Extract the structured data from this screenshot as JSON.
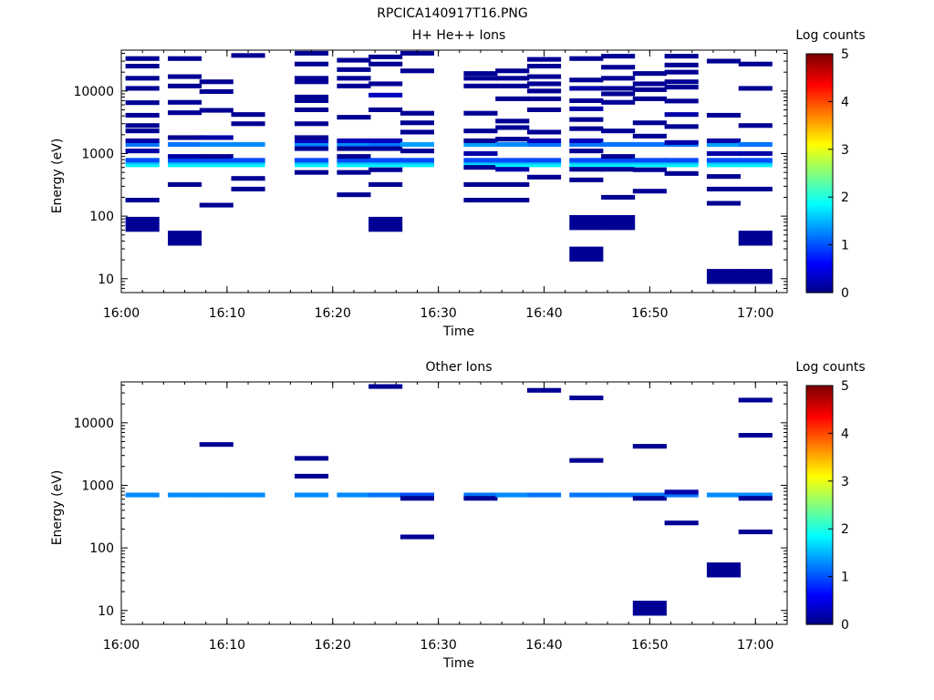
{
  "figure_title": "RPCICA140917T16.PNG",
  "chart_data": [
    {
      "type": "heatmap",
      "title": "H+ He++ Ions",
      "xlabel": "Time",
      "ylabel": "Energy (eV)",
      "x_ticks": [
        "16:00",
        "16:10",
        "16:20",
        "16:30",
        "16:40",
        "16:50",
        "17:00"
      ],
      "x_range": [
        "16:00",
        "17:03"
      ],
      "y_scale": "log",
      "y_ticks": [
        "10",
        "100",
        "1000",
        "10000"
      ],
      "y_range": [
        6,
        45000
      ],
      "colorbar": {
        "label": "Log counts",
        "range": [
          0,
          5
        ],
        "ticks": [
          "0",
          "1",
          "2",
          "3",
          "4",
          "5"
        ]
      },
      "time_columns": [
        "16:02",
        "16:06",
        "16:09",
        "16:12",
        "16:18",
        "16:22",
        "16:25",
        "16:28",
        "16:34",
        "16:37",
        "16:40",
        "16:44",
        "16:47",
        "16:50",
        "16:53",
        "16:57",
        "17:00"
      ],
      "cells": [
        [
          0,
          660,
          1.8
        ],
        [
          0,
          730,
          1.6
        ],
        [
          0,
          1400,
          1.2
        ],
        [
          0,
          780,
          1.0
        ],
        [
          0,
          75,
          0.1
        ],
        [
          0,
          180,
          0.1
        ],
        [
          0,
          1100,
          0.2
        ],
        [
          0,
          1600,
          0.2
        ],
        [
          0,
          2300,
          0.1
        ],
        [
          0,
          2800,
          0.1
        ],
        [
          0,
          4100,
          0.1
        ],
        [
          0,
          6500,
          0.1
        ],
        [
          0,
          11000,
          0.1
        ],
        [
          0,
          16000,
          0.1
        ],
        [
          0,
          25000,
          0.1
        ],
        [
          0,
          33000,
          0.1
        ],
        [
          1,
          660,
          1.8
        ],
        [
          1,
          730,
          1.6
        ],
        [
          1,
          1400,
          1.2
        ],
        [
          1,
          780,
          1.0
        ],
        [
          1,
          45,
          0.1
        ],
        [
          1,
          320,
          0.1
        ],
        [
          1,
          900,
          0.2
        ],
        [
          1,
          1800,
          0.1
        ],
        [
          1,
          4500,
          0.1
        ],
        [
          1,
          6600,
          0.1
        ],
        [
          1,
          12000,
          0.1
        ],
        [
          1,
          17000,
          0.1
        ],
        [
          1,
          33000,
          0.1
        ],
        [
          2,
          660,
          1.8
        ],
        [
          2,
          730,
          1.6
        ],
        [
          2,
          1400,
          1.3
        ],
        [
          2,
          780,
          1.0
        ],
        [
          2,
          150,
          0.1
        ],
        [
          2,
          900,
          0.1
        ],
        [
          2,
          1800,
          0.2
        ],
        [
          2,
          4900,
          0.1
        ],
        [
          2,
          9800,
          0.1
        ],
        [
          2,
          14000,
          0.1
        ],
        [
          3,
          660,
          1.8
        ],
        [
          3,
          730,
          1.6
        ],
        [
          3,
          1400,
          1.3
        ],
        [
          3,
          780,
          1.0
        ],
        [
          3,
          270,
          0.1
        ],
        [
          3,
          400,
          0.1
        ],
        [
          3,
          3000,
          0.1
        ],
        [
          3,
          4200,
          0.1
        ],
        [
          3,
          37000,
          0.1
        ],
        [
          4,
          660,
          1.8
        ],
        [
          4,
          730,
          1.6
        ],
        [
          4,
          1400,
          1.3
        ],
        [
          4,
          780,
          1.0
        ],
        [
          4,
          1600,
          0.3
        ],
        [
          4,
          500,
          0.1
        ],
        [
          4,
          1200,
          0.1
        ],
        [
          4,
          1800,
          0.1
        ],
        [
          4,
          3000,
          0.1
        ],
        [
          4,
          5000,
          0.1
        ],
        [
          4,
          7000,
          0.1
        ],
        [
          4,
          8000,
          0.1
        ],
        [
          4,
          14000,
          0.1
        ],
        [
          4,
          16000,
          0.1
        ],
        [
          4,
          27000,
          0.1
        ],
        [
          4,
          40000,
          0.1
        ],
        [
          5,
          660,
          1.8
        ],
        [
          5,
          730,
          1.6
        ],
        [
          5,
          1400,
          1.3
        ],
        [
          5,
          780,
          1.0
        ],
        [
          5,
          1600,
          0.3
        ],
        [
          5,
          220,
          0.1
        ],
        [
          5,
          500,
          0.1
        ],
        [
          5,
          900,
          0.1
        ],
        [
          5,
          1200,
          0.1
        ],
        [
          5,
          3800,
          0.1
        ],
        [
          5,
          12000,
          0.1
        ],
        [
          5,
          16000,
          0.1
        ],
        [
          5,
          22000,
          0.1
        ],
        [
          5,
          31000,
          0.1
        ],
        [
          6,
          660,
          1.8
        ],
        [
          6,
          730,
          1.6
        ],
        [
          6,
          1400,
          1.2
        ],
        [
          6,
          780,
          1.0
        ],
        [
          6,
          1600,
          0.3
        ],
        [
          6,
          75,
          0.1
        ],
        [
          6,
          320,
          0.1
        ],
        [
          6,
          550,
          0.1
        ],
        [
          6,
          1200,
          0.1
        ],
        [
          6,
          5000,
          0.1
        ],
        [
          6,
          8600,
          0.3
        ],
        [
          6,
          13000,
          0.1
        ],
        [
          6,
          27000,
          0.1
        ],
        [
          6,
          35000,
          0.1
        ],
        [
          7,
          660,
          1.8
        ],
        [
          7,
          730,
          1.6
        ],
        [
          7,
          1400,
          1.4
        ],
        [
          7,
          780,
          1.0
        ],
        [
          7,
          1100,
          0.1
        ],
        [
          7,
          2200,
          0.1
        ],
        [
          7,
          3100,
          0.1
        ],
        [
          7,
          4400,
          0.1
        ],
        [
          7,
          21000,
          0.1
        ],
        [
          7,
          40000,
          0.1
        ],
        [
          8,
          660,
          1.8
        ],
        [
          8,
          730,
          1.6
        ],
        [
          8,
          1400,
          1.4
        ],
        [
          8,
          780,
          1.0
        ],
        [
          8,
          180,
          0.1
        ],
        [
          8,
          320,
          0.1
        ],
        [
          8,
          600,
          0.1
        ],
        [
          8,
          1000,
          0.2
        ],
        [
          8,
          1600,
          0.1
        ],
        [
          8,
          2300,
          0.1
        ],
        [
          8,
          4400,
          0.1
        ],
        [
          8,
          12000,
          0.1
        ],
        [
          8,
          16000,
          0.1
        ],
        [
          8,
          19000,
          0.1
        ],
        [
          9,
          660,
          1.8
        ],
        [
          9,
          730,
          1.6
        ],
        [
          9,
          1400,
          1.3
        ],
        [
          9,
          780,
          1.0
        ],
        [
          9,
          180,
          0.1
        ],
        [
          9,
          320,
          0.1
        ],
        [
          9,
          560,
          0.2
        ],
        [
          9,
          1700,
          0.1
        ],
        [
          9,
          2600,
          0.1
        ],
        [
          9,
          3300,
          0.1
        ],
        [
          9,
          7500,
          0.1
        ],
        [
          9,
          12000,
          0.1
        ],
        [
          9,
          16000,
          0.1
        ],
        [
          9,
          21000,
          0.1
        ],
        [
          10,
          660,
          1.8
        ],
        [
          10,
          730,
          1.6
        ],
        [
          10,
          1400,
          1.2
        ],
        [
          10,
          780,
          1.0
        ],
        [
          10,
          1600,
          0.3
        ],
        [
          10,
          420,
          0.1
        ],
        [
          10,
          2200,
          0.1
        ],
        [
          10,
          5000,
          0.1
        ],
        [
          10,
          7500,
          0.1
        ],
        [
          10,
          10000,
          0.1
        ],
        [
          10,
          13000,
          0.1
        ],
        [
          10,
          17000,
          0.1
        ],
        [
          10,
          25000,
          0.1
        ],
        [
          10,
          32000,
          0.1
        ],
        [
          11,
          660,
          1.8
        ],
        [
          11,
          730,
          1.6
        ],
        [
          11,
          1400,
          1.2
        ],
        [
          11,
          780,
          1.0
        ],
        [
          11,
          80,
          0.1
        ],
        [
          11,
          25,
          0.1
        ],
        [
          11,
          380,
          0.1
        ],
        [
          11,
          560,
          0.1
        ],
        [
          11,
          1100,
          0.1
        ],
        [
          11,
          1600,
          0.3
        ],
        [
          11,
          2500,
          0.1
        ],
        [
          11,
          3500,
          0.1
        ],
        [
          11,
          5200,
          0.2
        ],
        [
          11,
          7000,
          0.1
        ],
        [
          11,
          11000,
          0.2
        ],
        [
          11,
          15000,
          0.1
        ],
        [
          11,
          33000,
          0.1
        ],
        [
          12,
          660,
          1.8
        ],
        [
          12,
          730,
          1.6
        ],
        [
          12,
          1400,
          1.2
        ],
        [
          12,
          780,
          1.0
        ],
        [
          12,
          80,
          0.1
        ],
        [
          12,
          200,
          0.1
        ],
        [
          12,
          560,
          0.1
        ],
        [
          12,
          900,
          0.1
        ],
        [
          12,
          2300,
          0.1
        ],
        [
          12,
          6600,
          0.1
        ],
        [
          12,
          9000,
          0.1
        ],
        [
          12,
          11000,
          0.1
        ],
        [
          12,
          16000,
          0.1
        ],
        [
          12,
          24000,
          0.1
        ],
        [
          12,
          36000,
          0.1
        ],
        [
          13,
          660,
          1.8
        ],
        [
          13,
          730,
          1.6
        ],
        [
          13,
          1400,
          1.2
        ],
        [
          13,
          780,
          1.0
        ],
        [
          13,
          250,
          0.1
        ],
        [
          13,
          550,
          0.1
        ],
        [
          13,
          1900,
          0.1
        ],
        [
          13,
          3100,
          0.1
        ],
        [
          13,
          7500,
          0.1
        ],
        [
          13,
          10500,
          0.1
        ],
        [
          13,
          13000,
          0.1
        ],
        [
          13,
          19000,
          0.1
        ],
        [
          14,
          660,
          1.8
        ],
        [
          14,
          730,
          1.6
        ],
        [
          14,
          1400,
          1.2
        ],
        [
          14,
          780,
          1.0
        ],
        [
          14,
          480,
          0.1
        ],
        [
          14,
          1500,
          0.2
        ],
        [
          14,
          2700,
          0.1
        ],
        [
          14,
          4200,
          0.2
        ],
        [
          14,
          6900,
          0.1
        ],
        [
          14,
          11500,
          0.1
        ],
        [
          14,
          14000,
          0.1
        ],
        [
          14,
          20000,
          0.1
        ],
        [
          14,
          26000,
          0.1
        ],
        [
          14,
          36000,
          0.1
        ],
        [
          15,
          660,
          1.8
        ],
        [
          15,
          730,
          1.6
        ],
        [
          15,
          1400,
          1.4
        ],
        [
          15,
          780,
          1.0
        ],
        [
          15,
          11,
          0.1
        ],
        [
          15,
          160,
          0.1
        ],
        [
          15,
          270,
          0.1
        ],
        [
          15,
          430,
          0.1
        ],
        [
          15,
          1000,
          0.2
        ],
        [
          15,
          1600,
          0.2
        ],
        [
          15,
          4100,
          0.1
        ],
        [
          15,
          30000,
          0.1
        ],
        [
          16,
          660,
          1.8
        ],
        [
          16,
          730,
          1.6
        ],
        [
          16,
          1400,
          1.2
        ],
        [
          16,
          780,
          1.0
        ],
        [
          16,
          11,
          0.1
        ],
        [
          16,
          45,
          0.1
        ],
        [
          16,
          270,
          0.1
        ],
        [
          16,
          1000,
          0.2
        ],
        [
          16,
          2800,
          0.1
        ],
        [
          16,
          11000,
          0.1
        ],
        [
          16,
          27000,
          0.1
        ]
      ]
    },
    {
      "type": "heatmap",
      "title": "Other Ions",
      "xlabel": "Time",
      "ylabel": "Energy (eV)",
      "x_ticks": [
        "16:00",
        "16:10",
        "16:20",
        "16:30",
        "16:40",
        "16:50",
        "17:00"
      ],
      "x_range": [
        "16:00",
        "17:03"
      ],
      "y_scale": "log",
      "y_ticks": [
        "10",
        "100",
        "1000",
        "10000"
      ],
      "y_range": [
        6,
        45000
      ],
      "colorbar": {
        "label": "Log counts",
        "range": [
          0,
          5
        ],
        "ticks": [
          "0",
          "1",
          "2",
          "3",
          "4",
          "5"
        ]
      },
      "time_columns": [
        "16:02",
        "16:06",
        "16:09",
        "16:12",
        "16:18",
        "16:22",
        "16:25",
        "16:28",
        "16:34",
        "16:37",
        "16:40",
        "16:44",
        "16:47",
        "16:50",
        "16:53",
        "16:57",
        "17:00"
      ],
      "cells": [
        [
          0,
          700,
          1.3
        ],
        [
          1,
          700,
          1.3
        ],
        [
          2,
          700,
          1.3
        ],
        [
          2,
          4500,
          0.1
        ],
        [
          3,
          700,
          1.3
        ],
        [
          4,
          700,
          1.3
        ],
        [
          4,
          1400,
          0.1
        ],
        [
          4,
          2700,
          0.1
        ],
        [
          5,
          700,
          1.3
        ],
        [
          6,
          700,
          1.2
        ],
        [
          6,
          38000,
          0.1
        ],
        [
          7,
          700,
          1.0
        ],
        [
          7,
          620,
          0.1
        ],
        [
          7,
          150,
          0.1
        ],
        [
          8,
          700,
          1.2
        ],
        [
          8,
          620,
          0.1
        ],
        [
          9,
          700,
          1.3
        ],
        [
          10,
          700,
          1.2
        ],
        [
          10,
          33000,
          0.1
        ],
        [
          11,
          700,
          1.2
        ],
        [
          11,
          2500,
          0.1
        ],
        [
          11,
          25000,
          0.1
        ],
        [
          12,
          700,
          1.2
        ],
        [
          13,
          700,
          1.2
        ],
        [
          13,
          620,
          0.1
        ],
        [
          13,
          4200,
          0.1
        ],
        [
          13,
          11,
          0.1
        ],
        [
          14,
          700,
          1.2
        ],
        [
          14,
          780,
          0.2
        ],
        [
          14,
          250,
          0.1
        ],
        [
          15,
          700,
          1.3
        ],
        [
          15,
          45,
          0.1
        ],
        [
          16,
          700,
          1.3
        ],
        [
          16,
          620,
          0.1
        ],
        [
          16,
          180,
          0.1
        ],
        [
          16,
          6300,
          0.1
        ],
        [
          16,
          23000,
          0.1
        ]
      ]
    }
  ]
}
